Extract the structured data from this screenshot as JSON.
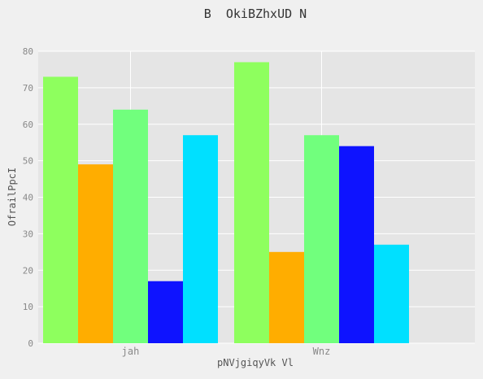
{
  "chart_data": {
    "type": "bar",
    "title": "B  OkiBZhxUD N",
    "xlabel": "pNVjgiqyVk Vl",
    "ylabel": "OfrailPpcI",
    "categories": [
      "jah",
      "Wnz"
    ],
    "series": [
      {
        "values": [
          73,
          77
        ],
        "color": "#8eff5e"
      },
      {
        "values": [
          49,
          25
        ],
        "color": "#ffad00"
      },
      {
        "values": [
          64,
          57
        ],
        "color": "#71ff7d"
      },
      {
        "values": [
          17,
          54
        ],
        "color": "#0e13ff"
      },
      {
        "values": [
          57,
          27
        ],
        "color": "#00e0ff"
      }
    ],
    "yticks": [
      0,
      10,
      20,
      30,
      40,
      50,
      60,
      70,
      80
    ],
    "ylim": [
      0,
      80
    ],
    "grid": true,
    "legend": "none"
  },
  "style": {
    "background": "#f0f0f0",
    "plot_background": "#e5e5e5",
    "grid_color": "#ffffff",
    "text_color": "#555555",
    "tick_color": "#888888"
  }
}
